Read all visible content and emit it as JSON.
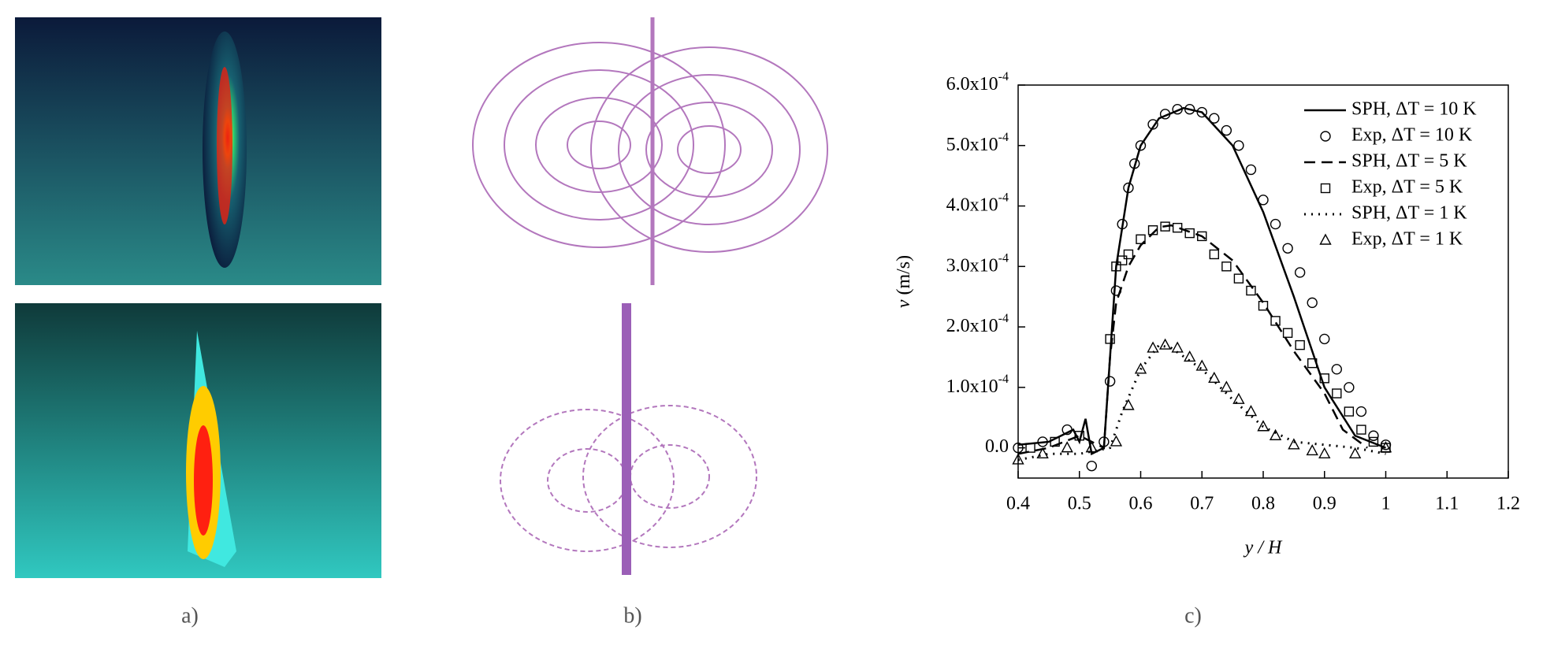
{
  "figure": {
    "panel_labels": [
      "a)",
      "b)",
      "c)"
    ]
  },
  "chart_data": {
    "type": "line",
    "x_label": "y / H",
    "y_label": "v (m/s)",
    "xlim": [
      0.4,
      1.2
    ],
    "xticks": [
      0.4,
      0.5,
      0.6,
      0.7,
      0.8,
      0.9,
      1.0,
      1.1,
      1.2
    ],
    "ylim": [
      -5e-05,
      0.0006
    ],
    "yticks": [
      {
        "value": 0,
        "label": "0.0"
      },
      {
        "value": 0.0001,
        "label": "1.0x10-4"
      },
      {
        "value": 0.0002,
        "label": "2.0x10-4"
      },
      {
        "value": 0.0003,
        "label": "3.0x10-4"
      },
      {
        "value": 0.0004,
        "label": "4.0x10-4"
      },
      {
        "value": 0.0005,
        "label": "5.0x10-4"
      },
      {
        "value": 0.0006,
        "label": "6.0x10-4"
      }
    ],
    "legend": "top-right",
    "series": [
      {
        "name": "SPH, ΔT = 10 K",
        "color": "#000000",
        "style": "solid",
        "x": [
          0.4,
          0.45,
          0.49,
          0.5,
          0.51,
          0.52,
          0.54,
          0.55,
          0.56,
          0.58,
          0.6,
          0.63,
          0.67,
          0.7,
          0.75,
          0.8,
          0.85,
          0.9,
          0.95,
          1.0
        ],
        "values": [
          5e-06,
          1e-05,
          3e-05,
          1e-05,
          4.8e-05,
          -1e-05,
          0.0,
          0.00015,
          0.0003,
          0.00043,
          0.0005,
          0.000545,
          0.000562,
          0.000555,
          0.0005,
          0.00039,
          0.00025,
          0.0001,
          2e-05,
          0.0
        ]
      },
      {
        "name": "Exp, ΔT = 10 K",
        "color": "#000000",
        "marker": "circle",
        "x": [
          0.4,
          0.44,
          0.48,
          0.52,
          0.54,
          0.55,
          0.56,
          0.57,
          0.58,
          0.59,
          0.6,
          0.62,
          0.64,
          0.66,
          0.68,
          0.7,
          0.72,
          0.74,
          0.76,
          0.78,
          0.8,
          0.82,
          0.84,
          0.86,
          0.88,
          0.9,
          0.92,
          0.94,
          0.96,
          0.98,
          1.0
        ],
        "values": [
          0.0,
          1e-05,
          3e-05,
          -3e-05,
          1e-05,
          0.00011,
          0.00026,
          0.00037,
          0.00043,
          0.00047,
          0.0005,
          0.000535,
          0.000552,
          0.00056,
          0.00056,
          0.000555,
          0.000545,
          0.000525,
          0.0005,
          0.00046,
          0.00041,
          0.00037,
          0.00033,
          0.00029,
          0.00024,
          0.00018,
          0.00013,
          0.0001,
          6e-05,
          2e-05,
          5e-06
        ]
      },
      {
        "name": "SPH, ΔT = 5 K",
        "color": "#000000",
        "style": "dashed",
        "x": [
          0.4,
          0.45,
          0.5,
          0.54,
          0.55,
          0.56,
          0.58,
          0.6,
          0.63,
          0.65,
          0.7,
          0.75,
          0.8,
          0.85,
          0.9,
          0.93,
          0.97
        ],
        "values": [
          -1e-05,
          0.0,
          2e-05,
          0.0,
          0.00015,
          0.00024,
          0.0003,
          0.000335,
          0.000365,
          0.000368,
          0.00035,
          0.00031,
          0.00024,
          0.00016,
          9e-05,
          3e-05,
          0.0
        ]
      },
      {
        "name": "Exp, ΔT = 5 K",
        "color": "#000000",
        "marker": "square",
        "x": [
          0.42,
          0.46,
          0.5,
          0.55,
          0.56,
          0.57,
          0.58,
          0.6,
          0.62,
          0.64,
          0.66,
          0.68,
          0.7,
          0.72,
          0.74,
          0.76,
          0.78,
          0.8,
          0.82,
          0.84,
          0.86,
          0.88,
          0.9,
          0.92,
          0.94,
          0.96,
          0.98,
          1.0
        ],
        "values": [
          0.0,
          1e-05,
          2e-05,
          0.00018,
          0.0003,
          0.00031,
          0.00032,
          0.000345,
          0.00036,
          0.000366,
          0.000364,
          0.000355,
          0.00035,
          0.00032,
          0.0003,
          0.00028,
          0.00026,
          0.000235,
          0.00021,
          0.00019,
          0.00017,
          0.00014,
          0.000115,
          9e-05,
          6e-05,
          3e-05,
          1e-05,
          0.0
        ]
      },
      {
        "name": "SPH, ΔT = 1 K",
        "color": "#000000",
        "style": "dotted",
        "x": [
          0.4,
          0.45,
          0.5,
          0.55,
          0.57,
          0.6,
          0.63,
          0.65,
          0.7,
          0.75,
          0.8,
          0.85,
          0.9,
          0.95,
          1.0
        ],
        "values": [
          -2e-05,
          -1e-05,
          -1e-05,
          0.0,
          6e-05,
          0.00013,
          0.00017,
          0.000165,
          0.00013,
          8e-05,
          3.5e-05,
          1e-05,
          5e-06,
          0.0,
          -1e-05
        ]
      },
      {
        "name": "Exp, ΔT = 1 K",
        "color": "#000000",
        "marker": "triangle",
        "x": [
          0.4,
          0.44,
          0.48,
          0.52,
          0.56,
          0.58,
          0.6,
          0.62,
          0.64,
          0.66,
          0.68,
          0.7,
          0.72,
          0.74,
          0.76,
          0.78,
          0.8,
          0.82,
          0.85,
          0.88,
          0.9,
          0.95,
          1.0
        ],
        "values": [
          -2e-05,
          -1e-05,
          0.0,
          0.0,
          1e-05,
          7e-05,
          0.00013,
          0.000165,
          0.00017,
          0.000165,
          0.00015,
          0.000135,
          0.000115,
          0.0001,
          8e-05,
          6e-05,
          3.5e-05,
          2e-05,
          5e-06,
          -5e-06,
          -1e-05,
          -1e-05,
          0.0
        ]
      }
    ]
  }
}
